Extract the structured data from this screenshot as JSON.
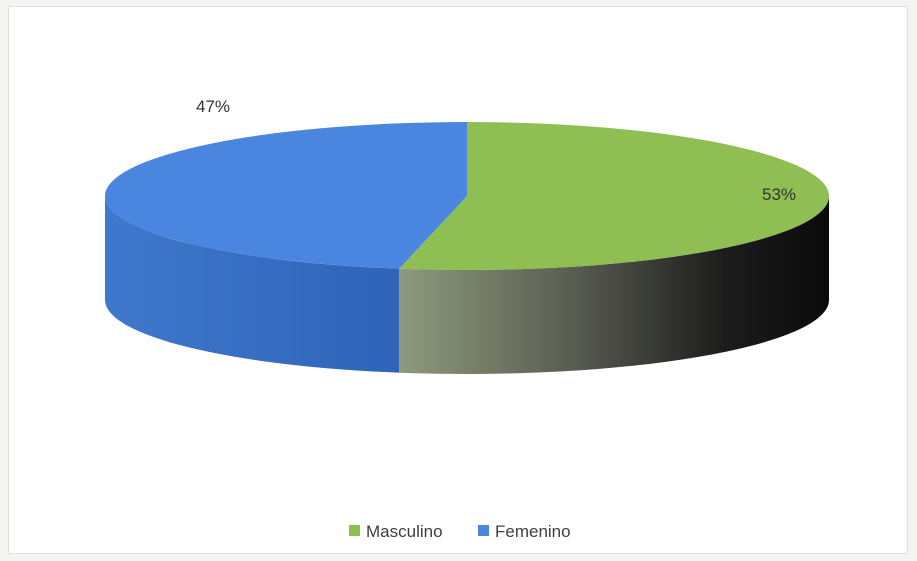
{
  "chart_data": {
    "type": "pie",
    "style": "3d",
    "title": "",
    "labels": [
      "Masculino",
      "Femenino"
    ],
    "values": [
      53,
      47
    ],
    "value_labels": [
      "53%",
      "47%"
    ],
    "colors": [
      "#8fbf52",
      "#4a86e0"
    ],
    "legend_position": "bottom-center"
  }
}
